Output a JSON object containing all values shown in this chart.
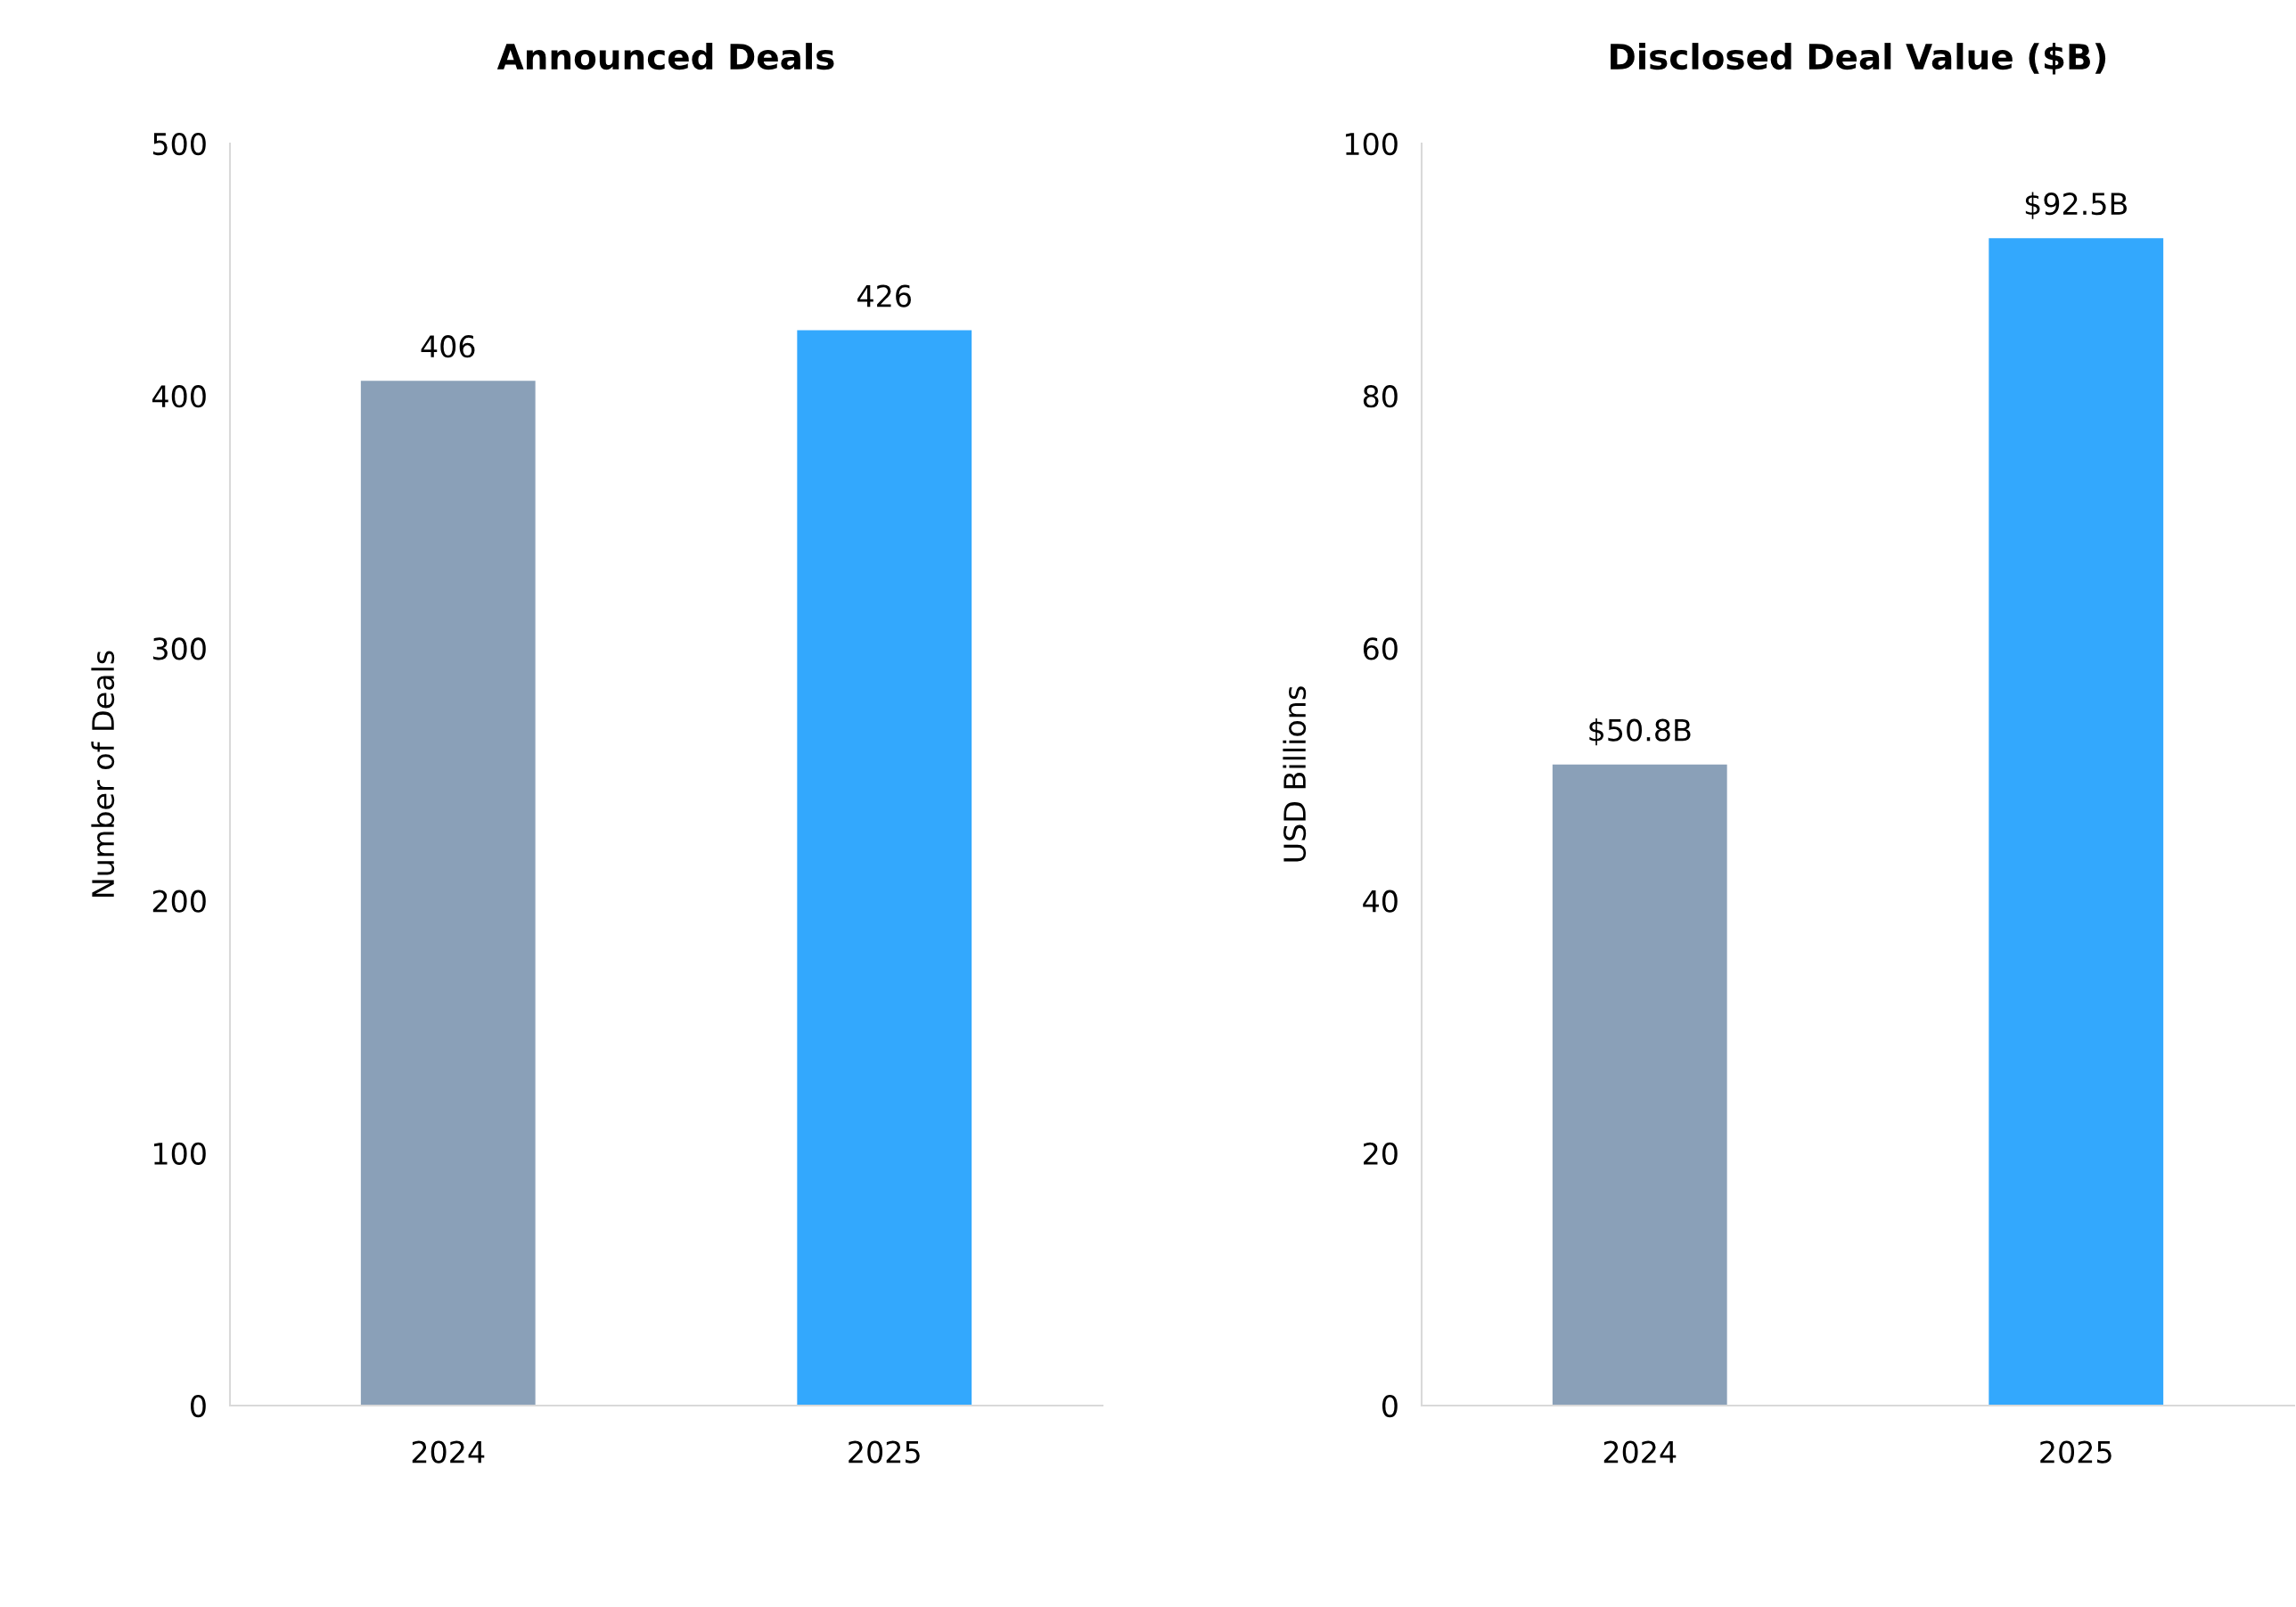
{
  "chart_data": [
    {
      "type": "bar",
      "title": "Announced Deals",
      "ylabel": "Number of Deals",
      "categories": [
        "2024",
        "2025"
      ],
      "values": [
        406,
        426
      ],
      "colors": [
        "#8aa0b8",
        "#33a8fd"
      ],
      "ylim": [
        0,
        500
      ],
      "yticks": [
        0,
        100,
        200,
        300,
        400,
        500
      ],
      "data_labels": true,
      "grid": false,
      "legend": false
    },
    {
      "type": "bar",
      "title": "Disclosed Deal Value ($B)",
      "ylabel": "USD Billions",
      "categories": [
        "2024",
        "2025"
      ],
      "values": [
        50.8,
        92.5
      ],
      "value_labels": [
        "$50.8B",
        "$92.5B"
      ],
      "colors": [
        "#8aa0b8",
        "#33a8fd"
      ],
      "ylim": [
        0,
        100
      ],
      "yticks": [
        0,
        20,
        40,
        60,
        80,
        100
      ],
      "grid": false,
      "legend": false
    }
  ]
}
